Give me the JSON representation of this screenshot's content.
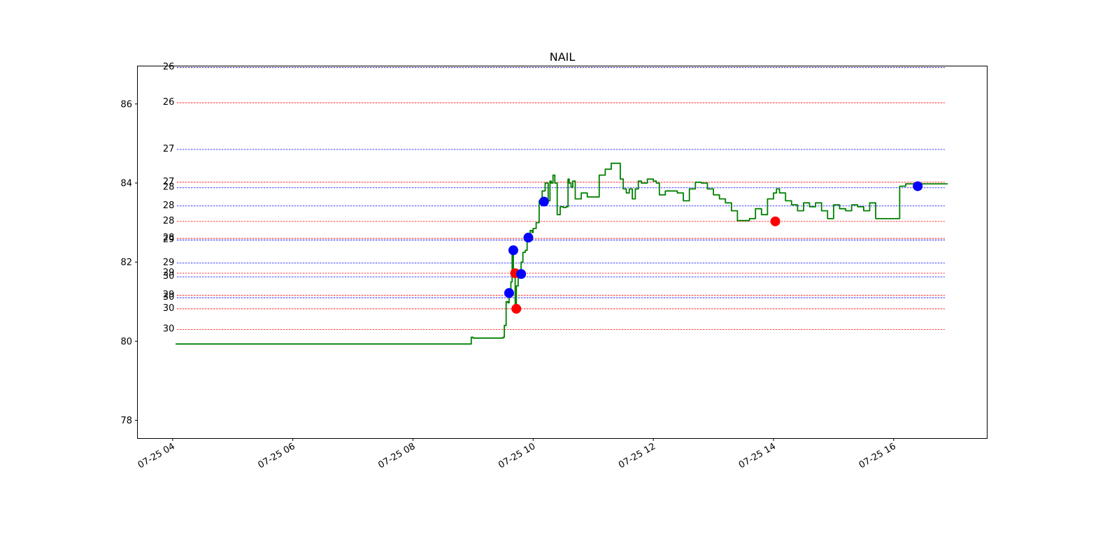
{
  "chart_data": {
    "type": "line",
    "title": "NAIL",
    "xlabel": "",
    "ylabel": "",
    "x_ticks": [
      "07-25 04",
      "07-25 06",
      "07-25 08",
      "07-25 10",
      "07-25 12",
      "07-25 14",
      "07-25 16"
    ],
    "x_tick_hours": [
      4,
      6,
      8,
      10,
      12,
      14,
      16
    ],
    "xlim_hours": [
      3.42,
      17.55
    ],
    "y_ticks": [
      78,
      80,
      82,
      84,
      86
    ],
    "ylim": [
      77.55,
      86.95
    ],
    "grid": false,
    "series_color": "#008000",
    "series": [
      {
        "x_hours": [
          4.05,
          8.95,
          8.97,
          9.0,
          9.3,
          9.5,
          9.52,
          9.55,
          9.58,
          9.6,
          9.63,
          9.65,
          9.67,
          9.7,
          9.72,
          9.75,
          9.78,
          9.8,
          9.83,
          9.87,
          9.9,
          9.93,
          9.95,
          9.98,
          10.0,
          10.05,
          10.1,
          10.15,
          10.2,
          10.25,
          10.28,
          10.3,
          10.33,
          10.36,
          10.4,
          10.45,
          10.5,
          10.55,
          10.58,
          10.6,
          10.63,
          10.66,
          10.7,
          10.8,
          10.85,
          10.9,
          10.95,
          11.0,
          11.05,
          11.1,
          11.15,
          11.2,
          11.3,
          11.45,
          11.5,
          11.55,
          11.6,
          11.65,
          11.7,
          11.75,
          11.8,
          11.9,
          12.0,
          12.05,
          12.1,
          12.2,
          12.3,
          12.4,
          12.5,
          12.6,
          12.7,
          12.8,
          12.9,
          13.0,
          13.1,
          13.2,
          13.3,
          13.4,
          13.6,
          13.7,
          13.8,
          13.9,
          14.0,
          14.05,
          14.1,
          14.2,
          14.3,
          14.4,
          14.5,
          14.6,
          14.7,
          14.8,
          14.9,
          15.0,
          15.1,
          15.2,
          15.3,
          15.4,
          15.5,
          15.6,
          15.7,
          15.8,
          15.9,
          16.0,
          16.1,
          16.2,
          16.3,
          16.38,
          16.42,
          16.5,
          16.9
        ],
        "values": [
          79.93,
          79.93,
          80.1,
          80.08,
          80.08,
          80.1,
          80.4,
          81.0,
          80.97,
          81.2,
          81.5,
          82.3,
          81.7,
          80.85,
          81.4,
          81.7,
          81.8,
          82.0,
          82.25,
          82.3,
          82.62,
          82.7,
          82.8,
          82.75,
          82.85,
          83.0,
          83.55,
          83.8,
          84.0,
          83.55,
          84.05,
          84.0,
          84.2,
          84.0,
          83.2,
          83.4,
          83.38,
          83.4,
          84.1,
          84.0,
          83.9,
          84.05,
          83.6,
          83.75,
          83.75,
          83.65,
          83.65,
          83.65,
          83.65,
          84.2,
          84.2,
          84.35,
          84.5,
          84.1,
          83.85,
          83.75,
          83.85,
          83.6,
          83.85,
          84.05,
          84.0,
          84.1,
          84.05,
          84.0,
          83.7,
          83.8,
          83.8,
          83.75,
          83.55,
          83.85,
          84.02,
          84.0,
          83.85,
          83.7,
          83.6,
          83.5,
          83.3,
          83.05,
          83.1,
          83.35,
          83.2,
          83.6,
          83.75,
          83.85,
          83.75,
          83.55,
          83.45,
          83.3,
          83.5,
          83.4,
          83.5,
          83.3,
          83.1,
          83.45,
          83.35,
          83.3,
          83.45,
          83.4,
          83.3,
          83.5,
          83.1,
          83.1,
          83.1,
          83.1,
          83.92,
          83.98,
          83.98,
          83.98,
          83.98,
          83.98,
          83.98
        ]
      }
    ],
    "markers": [
      {
        "x_hours": 9.6,
        "y": 81.22,
        "color": "#0000ff"
      },
      {
        "x_hours": 9.67,
        "y": 82.3,
        "color": "#0000ff"
      },
      {
        "x_hours": 9.7,
        "y": 81.72,
        "color": "#ff0000"
      },
      {
        "x_hours": 9.72,
        "y": 80.82,
        "color": "#ff0000"
      },
      {
        "x_hours": 9.8,
        "y": 81.7,
        "color": "#0000ff"
      },
      {
        "x_hours": 9.92,
        "y": 82.62,
        "color": "#0000ff"
      },
      {
        "x_hours": 10.18,
        "y": 83.53,
        "color": "#0000ff"
      },
      {
        "x_hours": 14.03,
        "y": 83.03,
        "color": "#ff0000"
      },
      {
        "x_hours": 16.4,
        "y": 83.92,
        "color": "#0000ff"
      }
    ],
    "levels": [
      {
        "y": 86.92,
        "color": "#00008b",
        "label": "26"
      },
      {
        "y": 86.03,
        "color": "#ff0000",
        "label": "26"
      },
      {
        "y": 84.85,
        "color": "#0000ff",
        "label": "27"
      },
      {
        "y": 84.02,
        "color": "#ff0000",
        "label": "27"
      },
      {
        "y": 83.88,
        "color": "#0000ff",
        "label": "28"
      },
      {
        "y": 83.42,
        "color": "#0000ff",
        "label": "28"
      },
      {
        "y": 83.03,
        "color": "#ff0000",
        "label": "28"
      },
      {
        "y": 82.6,
        "color": "#ff0000",
        "label": "28"
      },
      {
        "y": 82.56,
        "color": "#0000ff",
        "label": "29"
      },
      {
        "y": 81.98,
        "color": "#0000ff",
        "label": "29"
      },
      {
        "y": 81.72,
        "color": "#ff0000",
        "label": "29"
      },
      {
        "y": 81.63,
        "color": "#0000ff",
        "label": "30"
      },
      {
        "y": 81.16,
        "color": "#ff0000",
        "label": "29"
      },
      {
        "y": 81.1,
        "color": "#0000ff",
        "label": "30"
      },
      {
        "y": 80.82,
        "color": "#ff0000",
        "label": "30"
      },
      {
        "y": 80.3,
        "color": "#ff0000",
        "label": "30"
      }
    ]
  }
}
